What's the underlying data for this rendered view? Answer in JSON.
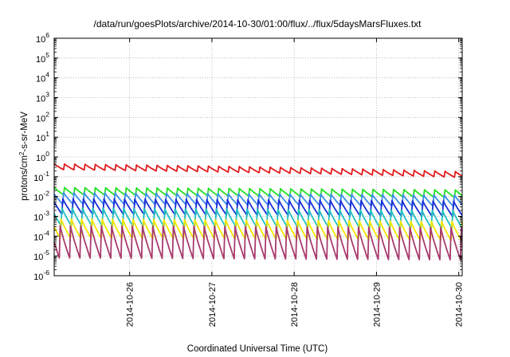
{
  "chart_data": {
    "type": "line",
    "title": "/data/run/goesPlots/archive/2014-10-30/01:00/flux/../flux/5daysMarsFluxes.txt",
    "xlabel": "Coordinated Universal Time (UTC)",
    "ylabel_parts": [
      "protons/cm",
      "2",
      "-s-sr-MeV"
    ],
    "y_scale": "log",
    "ylim": [
      1e-06,
      1000000.0
    ],
    "y_ticks": [
      {
        "base": "10",
        "exp": "-6",
        "value": 1e-06
      },
      {
        "base": "10",
        "exp": "-5",
        "value": 1e-05
      },
      {
        "base": "10",
        "exp": "-4",
        "value": 0.0001
      },
      {
        "base": "10",
        "exp": "-3",
        "value": 0.001
      },
      {
        "base": "10",
        "exp": "-2",
        "value": 0.01
      },
      {
        "base": "10",
        "exp": "-1",
        "value": 0.1
      },
      {
        "base": "10",
        "exp": "0",
        "value": 1
      },
      {
        "base": "10",
        "exp": "1",
        "value": 10
      },
      {
        "base": "10",
        "exp": "2",
        "value": 100
      },
      {
        "base": "10",
        "exp": "3",
        "value": 1000
      },
      {
        "base": "10",
        "exp": "4",
        "value": 10000
      },
      {
        "base": "10",
        "exp": "5",
        "value": 100000
      },
      {
        "base": "10",
        "exp": "6",
        "value": 1000000
      }
    ],
    "x_range": [
      "2014-10-25T02:00",
      "2014-10-30T01:00"
    ],
    "x_ticks": [
      "2014-10-26",
      "2014-10-27",
      "2014-10-28",
      "2014-10-29",
      "2014-10-30"
    ],
    "grid": true,
    "legend": "none",
    "sawtooth": {
      "period_hours": 3,
      "phase_offset_hours": 0,
      "description": "each series follows a repeating sawtooth: sharp rise then decay, ~3-hour period"
    },
    "series": [
      {
        "color": "#e31a1c",
        "peak": 0.45,
        "trough": 0.22,
        "trend_end_factor": 0.4
      },
      {
        "color": "#22e022",
        "peak": 0.032,
        "trough": 0.012,
        "trend_end_factor": 0.75
      },
      {
        "color": "#3a8ee6",
        "peak": 0.018,
        "trough": 0.004,
        "trend_end_factor": 0.75
      },
      {
        "color": "#1a2ed6",
        "peak": 0.009,
        "trough": 0.0012,
        "trend_end_factor": 0.75
      },
      {
        "color": "#1fbfbf",
        "peak": 0.003,
        "trough": 0.0003,
        "trend_end_factor": 0.75
      },
      {
        "color": "#f2e600",
        "peak": 0.0008,
        "trough": 7e-05,
        "trend_end_factor": 0.75
      },
      {
        "color": "#a83a6e",
        "peak": 0.00035,
        "trough": 6e-06,
        "trend_end_factor": 0.8
      }
    ]
  }
}
